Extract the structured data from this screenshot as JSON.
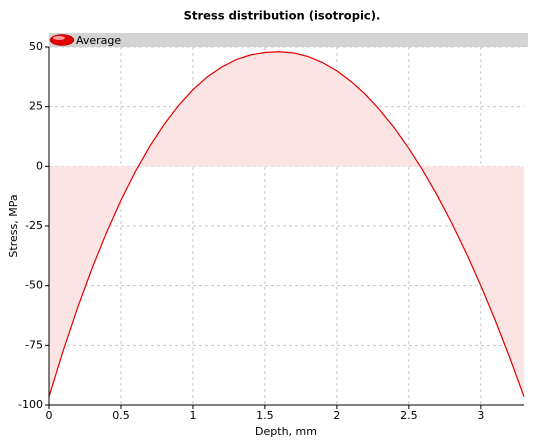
{
  "chart_data": {
    "type": "line",
    "title": "Stress distribution (isotropic).",
    "x_label": "Depth, mm",
    "y_label": "Stress, MPa",
    "x": [
      0,
      0.1,
      0.2,
      0.3,
      0.4,
      0.5,
      0.6,
      0.7,
      0.8,
      0.9,
      1.0,
      1.1,
      1.2,
      1.3,
      1.4,
      1.5,
      1.6,
      1.7,
      1.8,
      1.9,
      2.0,
      2.1,
      2.2,
      2.3,
      2.4,
      2.5,
      2.6,
      2.7,
      2.8,
      2.9,
      3.0,
      3.1,
      3.2,
      3.3
    ],
    "series": [
      {
        "name": "Average",
        "color": "#e00000",
        "area_color": "#fce4e4",
        "values": [
          -96.5,
          -77.0,
          -59.0,
          -42.6,
          -27.7,
          -14.2,
          -2.2,
          8.4,
          17.6,
          25.5,
          32.1,
          37.5,
          41.6,
          44.7,
          46.7,
          47.7,
          48,
          47.5,
          46,
          43.5,
          40,
          35.5,
          30,
          23.5,
          16,
          7.5,
          -2,
          -12.5,
          -24,
          -36.5,
          -50,
          -64.5,
          -80,
          -96.5
        ]
      }
    ],
    "xlim": [
      0,
      3.3
    ],
    "ylim": [
      -100,
      50
    ],
    "xticks": [
      0,
      0.5,
      1,
      1.5,
      2,
      2.5,
      3
    ],
    "yticks": [
      -100,
      -75,
      -50,
      -25,
      0,
      25,
      50
    ],
    "grid": true,
    "legend": "top"
  }
}
